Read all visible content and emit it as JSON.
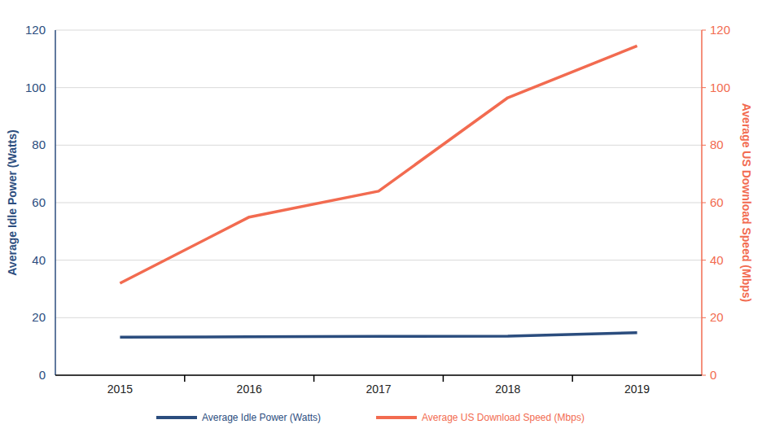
{
  "chart_data": {
    "type": "line",
    "categories": [
      "2015",
      "2016",
      "2017",
      "2018",
      "2019"
    ],
    "series": [
      {
        "name": "Average Idle Power (Watts)",
        "color": "#2b4d7e",
        "values": [
          13.2,
          13.4,
          13.5,
          13.6,
          14.8
        ]
      },
      {
        "name": "Average US Download Speed (Mbps)",
        "color": "#f26b50",
        "axis": "y2",
        "values": [
          32,
          55,
          64,
          96.5,
          114.5
        ]
      }
    ],
    "y_label": "Average Idle Power (Watts)",
    "y2_label": "Average US Download Speed (Mbps)",
    "ylim": [
      0,
      120
    ],
    "yticks": [
      0,
      20,
      40,
      60,
      80,
      100,
      120
    ],
    "y2lim": [
      0,
      120
    ],
    "y2ticks": [
      0,
      20,
      40,
      60,
      80,
      100,
      120
    ],
    "grid": true,
    "legend": "bottom"
  }
}
